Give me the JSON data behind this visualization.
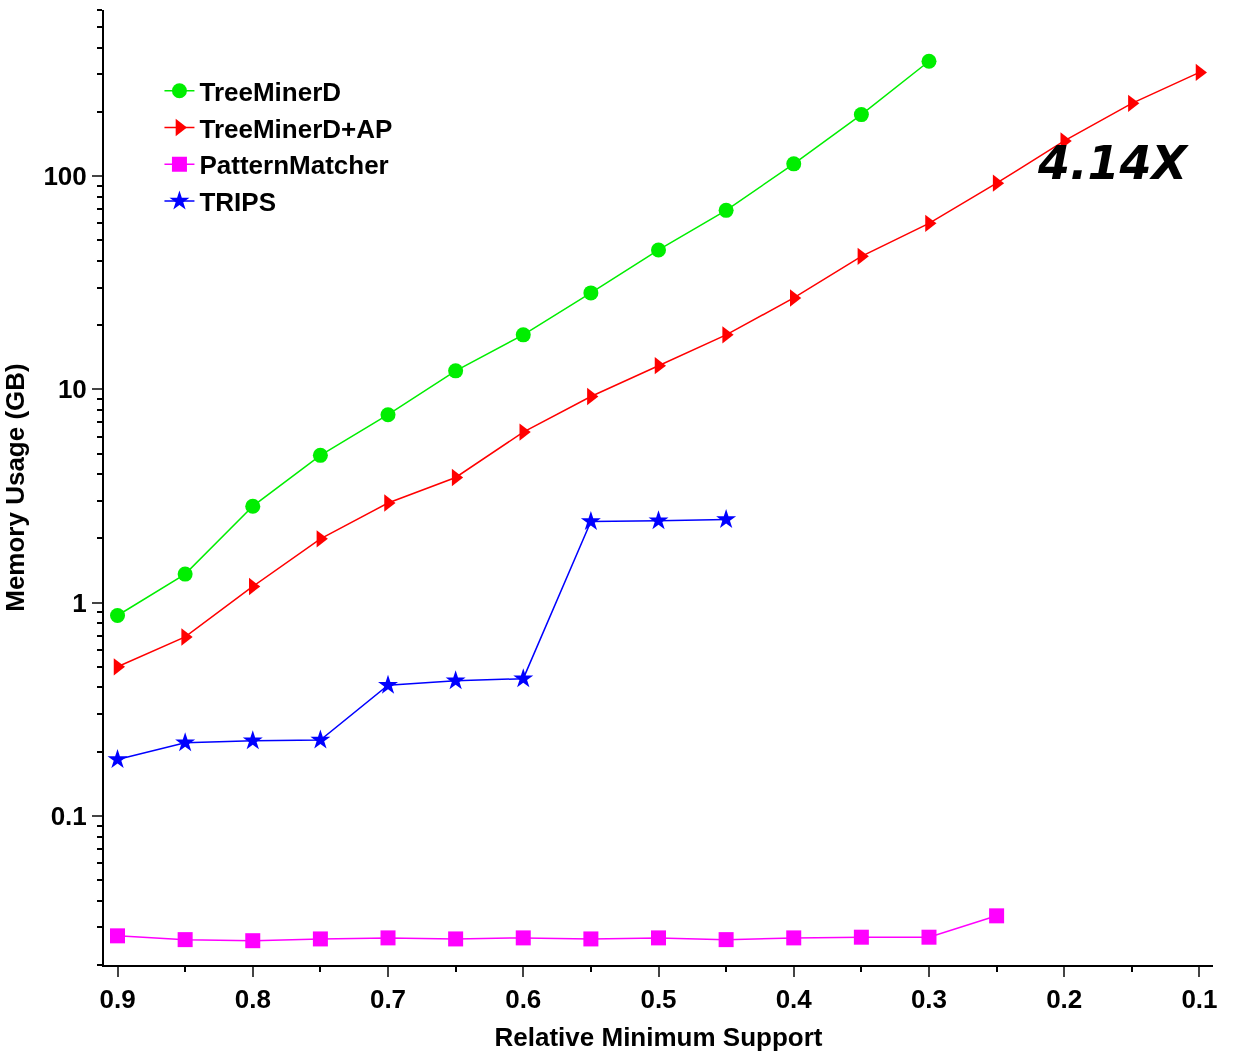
{
  "chart_data": {
    "type": "line",
    "xlabel": "Relative Minimum Support",
    "ylabel": "Memory Usage (GB)",
    "x": [
      0.9,
      0.85,
      0.8,
      0.75,
      0.7,
      0.65,
      0.6,
      0.55,
      0.5,
      0.45,
      0.4,
      0.35,
      0.3,
      0.25,
      0.2,
      0.15,
      0.1
    ],
    "series": [
      {
        "name": "TreeMinerD",
        "color": "#00ee00",
        "marker": "circle",
        "values": [
          0.87,
          1.36,
          2.83,
          4.9,
          7.6,
          12.2,
          18,
          28.3,
          45,
          69,
          114,
          194,
          345,
          null,
          null,
          null,
          null
        ]
      },
      {
        "name": "TreeMinerD+AP",
        "color": "#ff0000",
        "marker": "triangle",
        "values": [
          0.5,
          0.69,
          1.19,
          1.99,
          2.93,
          3.86,
          6.3,
          9.25,
          12.9,
          18,
          26.8,
          42,
          60,
          92.5,
          146,
          219,
          306
        ]
      },
      {
        "name": "PatternMatcher",
        "color": "#ff00ff",
        "marker": "square",
        "values": [
          0.0274,
          0.0263,
          0.026,
          0.0265,
          0.0268,
          0.0265,
          0.0268,
          0.0265,
          0.0268,
          0.0263,
          0.0268,
          0.027,
          0.027,
          0.034,
          null,
          null,
          null
        ]
      },
      {
        "name": "TRIPS",
        "color": "#0000ff",
        "marker": "star",
        "values": [
          0.184,
          0.22,
          0.225,
          0.227,
          0.41,
          0.43,
          0.44,
          2.4,
          2.42,
          2.45,
          null,
          null,
          null,
          null,
          null,
          null,
          null
        ]
      }
    ],
    "log": "y",
    "xlim": [
      0.91,
      0.09
    ],
    "ylim": [
      0.02,
      600
    ],
    "xticks": [
      0.9,
      0.8,
      0.7,
      0.6,
      0.5,
      0.4,
      0.3,
      0.2,
      0.1
    ],
    "yticks": [
      0.1,
      1,
      10,
      100
    ],
    "legend": "top left",
    "line_style": "solid",
    "annotations": [
      "4.14X"
    ]
  }
}
